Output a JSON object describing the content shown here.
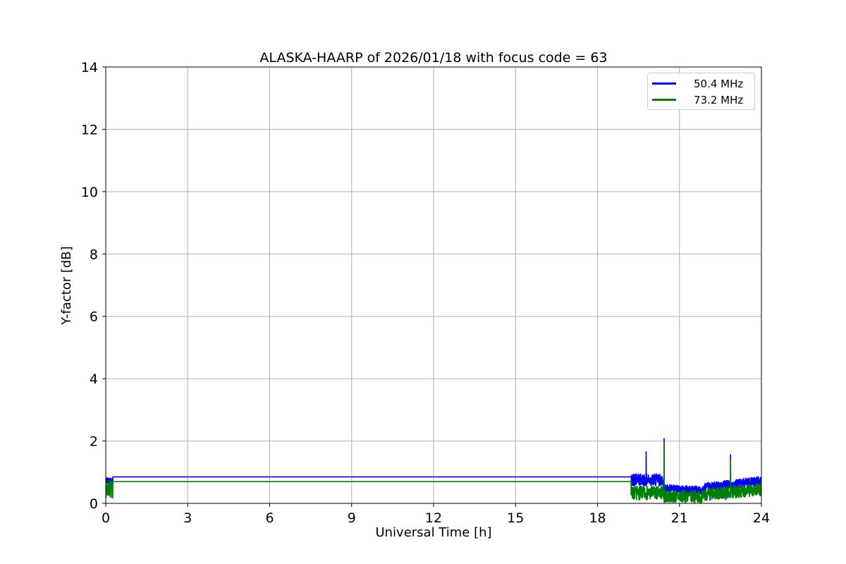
{
  "figure": {
    "background": "#ffffff"
  },
  "chart_data": {
    "type": "line",
    "title": "ALASKA-HAARP of 2026/01/18 with focus code = 63",
    "xlabel": "Universal Time [h]",
    "ylabel": "Y-factor [dB]",
    "xlim": [
      0,
      24
    ],
    "ylim": [
      0,
      14
    ],
    "xticks": [
      0,
      3,
      6,
      9,
      12,
      15,
      18,
      21,
      24
    ],
    "yticks": [
      0,
      2,
      4,
      6,
      8,
      10,
      12,
      14
    ],
    "grid": true,
    "grid_color": "#b0b0b0",
    "axis_color": "#000000",
    "background": "#ffffff",
    "legend": {
      "position": "upper right"
    },
    "series": [
      {
        "name": "50.4 MHz",
        "color": "#0000ff",
        "description": "flat at ~0.86 dB from 0.26h to 19.2h, noisy afterwards with spikes",
        "segments": [
          {
            "type": "noise",
            "x0": 0.0,
            "x1": 0.26,
            "mean": 0.72,
            "amp": 0.13
          },
          {
            "type": "flat",
            "x0": 0.26,
            "x1": 19.23,
            "y": 0.85
          },
          {
            "type": "noise",
            "x0": 19.23,
            "x1": 20.4,
            "mean": 0.75,
            "amp": 0.2
          },
          {
            "type": "noise",
            "x0": 20.4,
            "x1": 21.9,
            "mean": 0.48,
            "mean_end": 0.42,
            "amp": 0.13
          },
          {
            "type": "noise",
            "x0": 21.9,
            "x1": 24.0,
            "mean": 0.5,
            "mean_end": 0.72,
            "amp": 0.15
          },
          {
            "type": "spike",
            "x": 19.78,
            "peak": 1.65
          },
          {
            "type": "spike",
            "x": 20.44,
            "peak": 2.08
          },
          {
            "type": "spike",
            "x": 22.87,
            "peak": 1.56
          },
          {
            "type": "spike",
            "x": 20.8,
            "peak": 0.08
          },
          {
            "type": "spike",
            "x": 22.12,
            "peak": 0.1
          },
          {
            "type": "spike",
            "x": 22.7,
            "peak": 0.12
          }
        ]
      },
      {
        "name": "73.2 MHz",
        "color": "#008000",
        "description": "flat at ~0.70 dB from 0.26h to 19.2h, noisy afterwards with spikes",
        "segments": [
          {
            "type": "noise",
            "x0": 0.0,
            "x1": 0.26,
            "mean": 0.45,
            "amp": 0.29
          },
          {
            "type": "flat",
            "x0": 0.26,
            "x1": 19.23,
            "y": 0.7
          },
          {
            "type": "noise",
            "x0": 19.23,
            "x1": 20.4,
            "mean": 0.33,
            "amp": 0.22
          },
          {
            "type": "noise",
            "x0": 20.4,
            "x1": 21.9,
            "mean": 0.22,
            "amp": 0.2
          },
          {
            "type": "noise",
            "x0": 21.9,
            "x1": 24.0,
            "mean": 0.28,
            "mean_end": 0.45,
            "amp": 0.2
          },
          {
            "type": "spike",
            "x": 20.44,
            "peak": 1.95
          },
          {
            "type": "spike",
            "x": 22.87,
            "peak": 1.4
          }
        ]
      }
    ]
  }
}
